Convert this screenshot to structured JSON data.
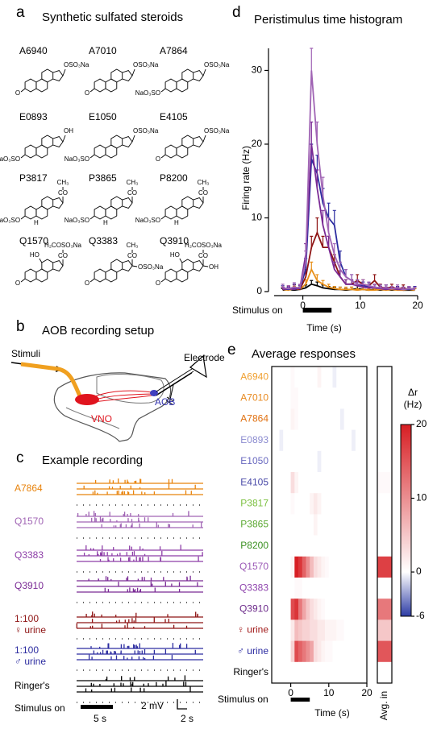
{
  "panels": {
    "a": {
      "letter": "a",
      "title": "Synthetic sulfated steroids",
      "compounds": [
        {
          "name": "A6940",
          "groups": {
            "c17": "OSO₃Na",
            "c3": "O"
          }
        },
        {
          "name": "A7010",
          "groups": {
            "c17": "OSO₃Na",
            "c3": "O"
          }
        },
        {
          "name": "A7864",
          "groups": {
            "c17": "OSO₃Na",
            "c3": "NaO₃SO"
          }
        },
        {
          "name": "E0893",
          "groups": {
            "c17": "OH",
            "c3": "NaO₃SO"
          }
        },
        {
          "name": "E1050",
          "groups": {
            "c17": "OSO₃Na",
            "c3": "NaO₃SO"
          }
        },
        {
          "name": "E4105",
          "groups": {
            "c17": "OSO₃Na",
            "c3": "O"
          }
        },
        {
          "name": "P3817",
          "groups": {
            "c21": "CH₃",
            "c20": "CO",
            "c3": "NaO₃SO",
            "c5": "H"
          }
        },
        {
          "name": "P3865",
          "groups": {
            "c21": "CH₃",
            "c20": "CO",
            "c3": "NaO₃SO",
            "c5": "H"
          }
        },
        {
          "name": "P8200",
          "groups": {
            "c21": "CH₃",
            "c20": "CO",
            "c3": "NaO₃SO",
            "c5": "H"
          }
        },
        {
          "name": "Q1570",
          "groups": {
            "c21": "H₂COSO₃Na",
            "c20": "CO",
            "c11": "HO",
            "c3": "O"
          }
        },
        {
          "name": "Q3383",
          "groups": {
            "c21": "CH₃",
            "c20": "CO",
            "c17": "OSO₃Na",
            "c3": "O"
          }
        },
        {
          "name": "Q3910",
          "groups": {
            "c21": "H₂COSO₃Na",
            "c20": "CO",
            "c17": "OH",
            "c11": "HO",
            "c3": "O"
          }
        }
      ]
    },
    "b": {
      "letter": "b",
      "title": "AOB recording setup",
      "stimuli": "Stimuli",
      "electrode": "Electrode",
      "aob": "AOB",
      "vno": "VNO"
    },
    "c": {
      "letter": "c",
      "title": "Example recording",
      "traces": [
        {
          "label": [
            "A7864"
          ],
          "color": "#e8830c"
        },
        {
          "label": [
            "Q1570"
          ],
          "color": "#a064b4"
        },
        {
          "label": [
            "Q3383"
          ],
          "color": "#8e3fa8"
        },
        {
          "label": [
            "Q3910"
          ],
          "color": "#7a2a95"
        },
        {
          "label": [
            "1:100",
            "♀ urine"
          ],
          "color": "#8e1414"
        },
        {
          "label": [
            "1:100",
            "♂ urine"
          ],
          "color": "#2c2ca0"
        },
        {
          "label": [
            "Ringer's"
          ],
          "color": "#000000"
        }
      ],
      "stimulus_label": "Stimulus on",
      "time_bar": "5 s",
      "volt_bar": "2 mV",
      "time_bar2": "2 s"
    },
    "d": {
      "letter": "d"
    },
    "e": {
      "letter": "e"
    }
  },
  "chart_data": [
    {
      "type": "line",
      "title": "Peristimulus time histogram",
      "ylabel": "Firing rate (Hz)",
      "xlabel": "Time (s)",
      "stimulus_label": "Stimulus on",
      "stimulus": [
        0,
        5
      ],
      "xlim": [
        -5,
        20
      ],
      "xticks": [
        0,
        10,
        20
      ],
      "ylim": [
        0,
        33
      ],
      "yticks": [
        0,
        10,
        20,
        30
      ],
      "x": [
        -3.5,
        -2.5,
        -1.5,
        -0.5,
        0.5,
        1.5,
        2.5,
        3.5,
        4.5,
        5.5,
        6.5,
        7.5,
        8.5,
        9.5,
        10.5,
        11.5,
        12.5,
        13.5,
        14.5,
        15.5,
        16.5,
        17.5,
        18.5,
        19.5
      ],
      "series": [
        {
          "color": "#000000",
          "values": [
            0.2,
            0.3,
            0.2,
            0.3,
            0.5,
            1,
            0.8,
            0.5,
            0.4,
            0.3,
            0.3,
            0.2,
            0.3,
            0.4,
            0.3,
            0.2,
            0.3,
            0.2,
            0.3,
            0.2,
            0.3,
            0.2,
            0.2,
            0.2
          ],
          "errors": [
            0.2,
            0.3,
            0.2,
            0.3,
            0.4,
            0.5,
            0.5,
            0.4,
            0.3,
            0.3,
            0.3,
            0.2,
            0.3,
            0.4,
            0.3,
            0.2,
            0.3,
            0.2,
            0.3,
            0.2,
            0.3,
            0.2,
            0.2,
            0.2
          ]
        },
        {
          "color": "#e8901a",
          "values": [
            0.3,
            0.2,
            0.4,
            0.3,
            1,
            3,
            1.5,
            1,
            0.6,
            0.4,
            0.3,
            0.3,
            0.3,
            0.2,
            0.3,
            0.2,
            0.2,
            0.3,
            0.2,
            0.3,
            0.2,
            0.2,
            0.3,
            0.2
          ],
          "errors": [
            0.3,
            0.2,
            0.3,
            0.3,
            0.6,
            1,
            0.8,
            0.5,
            0.4,
            0.3,
            0.3,
            0.3,
            0.3,
            0.2,
            0.3,
            0.2,
            0.2,
            0.3,
            0.2,
            0.3,
            0.2,
            0.2,
            0.3,
            0.2
          ]
        },
        {
          "color": "#8e1414",
          "values": [
            0.3,
            0.4,
            0.5,
            0.3,
            2,
            6,
            8,
            6,
            6,
            4,
            2,
            1,
            1,
            1.5,
            1,
            0.8,
            1.5,
            0.6,
            0.5,
            0.6,
            0.4,
            0.5,
            0.3,
            0.4
          ],
          "errors": [
            0.3,
            0.4,
            0.4,
            0.3,
            1,
            1.5,
            2,
            1.5,
            1.5,
            1,
            0.8,
            0.6,
            0.6,
            0.8,
            0.6,
            0.5,
            0.8,
            0.4,
            0.4,
            0.4,
            0.3,
            0.4,
            0.3,
            0.3
          ]
        },
        {
          "color": "#2c2ca0",
          "values": [
            0.4,
            0.3,
            0.5,
            0.4,
            3,
            18,
            16,
            12,
            10,
            9,
            4,
            2,
            1.5,
            1,
            0.8,
            0.7,
            0.6,
            0.5,
            0.5,
            0.4,
            0.4,
            0.3,
            0.3,
            0.4
          ],
          "errors": [
            0.4,
            0.3,
            0.5,
            0.4,
            1.5,
            2,
            2.5,
            2,
            2,
            2,
            1.5,
            1,
            0.8,
            0.6,
            0.5,
            0.5,
            0.4,
            0.4,
            0.4,
            0.3,
            0.3,
            0.3,
            0.3,
            0.3
          ]
        },
        {
          "color": "#7a2a95",
          "values": [
            0.3,
            0.4,
            0.3,
            0.5,
            5,
            20,
            14,
            9,
            6,
            3,
            2,
            1,
            1,
            0.8,
            0.6,
            0.5,
            0.5,
            0.4,
            0.3,
            0.4,
            0.3,
            0.3,
            0.4,
            0.3
          ],
          "errors": [
            0.3,
            0.3,
            0.3,
            0.4,
            1.5,
            3,
            2.5,
            2,
            1.5,
            1,
            0.8,
            0.6,
            0.6,
            0.5,
            0.4,
            0.4,
            0.4,
            0.3,
            0.3,
            0.3,
            0.3,
            0.3,
            0.3,
            0.3
          ]
        },
        {
          "color": "#a064b4",
          "values": [
            0.5,
            0.4,
            0.6,
            0.5,
            4,
            30,
            20,
            13,
            8,
            5,
            3,
            2,
            1.5,
            1,
            1,
            0.8,
            0.6,
            0.5,
            0.5,
            0.4,
            0.5,
            0.3,
            0.4,
            0.3
          ],
          "errors": [
            0.5,
            0.4,
            0.6,
            0.5,
            1.5,
            3,
            3,
            2.5,
            2,
            1.5,
            1,
            1,
            0.8,
            0.6,
            0.6,
            0.5,
            0.4,
            0.4,
            0.4,
            0.3,
            0.4,
            0.3,
            0.3,
            0.3
          ]
        }
      ]
    },
    {
      "type": "heatmap",
      "title": "Average responses",
      "xlabel": "Time (s)",
      "stimulus_label": "Stimulus on",
      "stimulus": [
        0,
        5
      ],
      "xlim": [
        -5,
        20
      ],
      "xticks": [
        0,
        10,
        20
      ],
      "bins": [
        -5,
        -4,
        -3,
        -2,
        -1,
        0,
        1,
        2,
        3,
        4,
        5,
        6,
        7,
        8,
        9,
        10,
        11,
        12,
        13,
        14,
        15,
        16,
        17,
        18,
        19,
        20
      ],
      "rows": [
        "A6940",
        "A7010",
        "A7864",
        "E0893",
        "E1050",
        "E4105",
        "P3817",
        "P3865",
        "P8200",
        "Q1570",
        "Q3383",
        "Q3910",
        "♀ urine",
        "♂ urine",
        "Ringer's"
      ],
      "row_colors": [
        "#f0a030",
        "#e88a20",
        "#e07010",
        "#8c8cd0",
        "#6a6ac0",
        "#4a4aa8",
        "#7cc040",
        "#5aa830",
        "#3a9020",
        "#9b59b6",
        "#8e44ad",
        "#6c2a8a",
        "#a01818",
        "#2a2aa0",
        "#000000"
      ],
      "values": [
        [
          0,
          0,
          0,
          0,
          0,
          0.5,
          0,
          0,
          0,
          0,
          0,
          0,
          1,
          0,
          0,
          0,
          -0.5,
          0,
          0,
          0,
          0,
          0,
          0,
          0,
          0
        ],
        [
          0,
          0,
          0,
          0,
          0,
          0.5,
          0.5,
          0,
          0,
          0,
          0,
          0,
          0,
          0,
          0,
          0,
          0,
          0,
          0,
          0,
          0,
          0,
          0,
          0,
          0
        ],
        [
          0,
          0,
          0,
          0,
          0,
          1,
          0.5,
          0,
          0,
          0,
          0,
          0,
          0,
          0,
          0,
          0,
          0,
          0,
          -0.5,
          0,
          0,
          0,
          0,
          0,
          0
        ],
        [
          0,
          0,
          -0.5,
          0,
          0,
          0,
          0,
          0,
          0,
          0,
          0,
          0,
          0,
          0,
          0,
          0,
          0,
          0,
          0,
          0,
          0,
          -0.5,
          0,
          0,
          0
        ],
        [
          0,
          0,
          0,
          0,
          0,
          0,
          0,
          0,
          0,
          0,
          0,
          0,
          -0.5,
          0,
          0,
          0,
          0,
          0,
          0,
          0,
          0,
          0,
          0,
          0,
          0
        ],
        [
          0,
          0,
          0,
          0,
          0,
          3,
          1,
          0,
          0,
          0,
          0,
          0,
          0,
          0,
          0,
          0,
          0,
          0,
          0,
          0,
          0,
          0,
          0,
          0,
          0
        ],
        [
          0,
          0,
          0,
          0,
          0,
          0.5,
          0,
          0,
          0,
          0,
          1,
          2,
          1,
          0,
          0,
          0,
          0,
          0,
          0,
          0,
          0,
          0,
          0,
          0,
          0
        ],
        [
          0,
          0,
          0,
          0,
          0,
          0,
          0,
          0,
          0,
          0,
          0,
          1,
          0,
          0,
          0,
          0,
          0,
          0,
          0,
          0,
          0,
          0,
          0,
          0,
          0
        ],
        [
          0,
          0,
          0,
          0,
          0,
          0,
          0,
          0,
          0,
          0,
          0,
          0,
          0,
          0,
          0,
          0,
          0,
          0,
          0,
          0,
          0,
          0,
          0,
          0,
          0
        ],
        [
          0,
          0,
          0,
          0,
          0,
          1,
          20,
          18,
          14,
          10,
          6,
          3,
          2,
          1,
          0.5,
          0,
          0,
          0,
          0,
          0,
          0,
          0,
          0,
          0,
          0
        ],
        [
          0,
          0,
          0,
          0,
          0,
          0,
          0.5,
          0.5,
          0,
          0,
          0,
          0,
          0,
          0,
          0,
          0,
          0,
          0,
          0,
          0,
          0,
          0,
          0,
          0,
          0
        ],
        [
          0,
          0,
          0,
          0,
          0,
          16,
          18,
          12,
          8,
          5,
          3,
          2,
          1,
          0.5,
          0,
          0,
          0,
          0,
          0,
          0,
          0,
          0,
          0,
          0,
          0
        ],
        [
          0,
          0,
          0,
          0,
          0,
          2,
          6,
          5,
          4,
          4,
          3,
          3,
          2,
          2,
          1,
          1,
          1,
          0.5,
          0.5,
          0,
          0,
          0,
          0,
          0,
          0
        ],
        [
          0,
          0,
          0,
          0,
          0,
          4,
          16,
          14,
          12,
          10,
          8,
          3,
          2,
          1,
          0.5,
          0.5,
          0,
          0,
          0,
          0,
          0,
          0,
          0,
          0,
          0
        ],
        [
          0,
          0,
          0,
          0,
          0,
          0,
          0,
          0,
          0,
          0,
          0,
          0,
          0,
          0,
          0,
          0,
          0,
          0,
          0,
          0,
          0,
          0,
          0,
          0,
          0
        ]
      ],
      "avg_label": "Avg. in",
      "avg_values": [
        0,
        0,
        0,
        0,
        0,
        0.5,
        0,
        0,
        0,
        17,
        0,
        12,
        5,
        15,
        0
      ],
      "colorbar_label": [
        "Δr",
        "(Hz)"
      ],
      "clim": [
        -6,
        20
      ],
      "cticks": [
        -6,
        0,
        10,
        20
      ]
    }
  ]
}
